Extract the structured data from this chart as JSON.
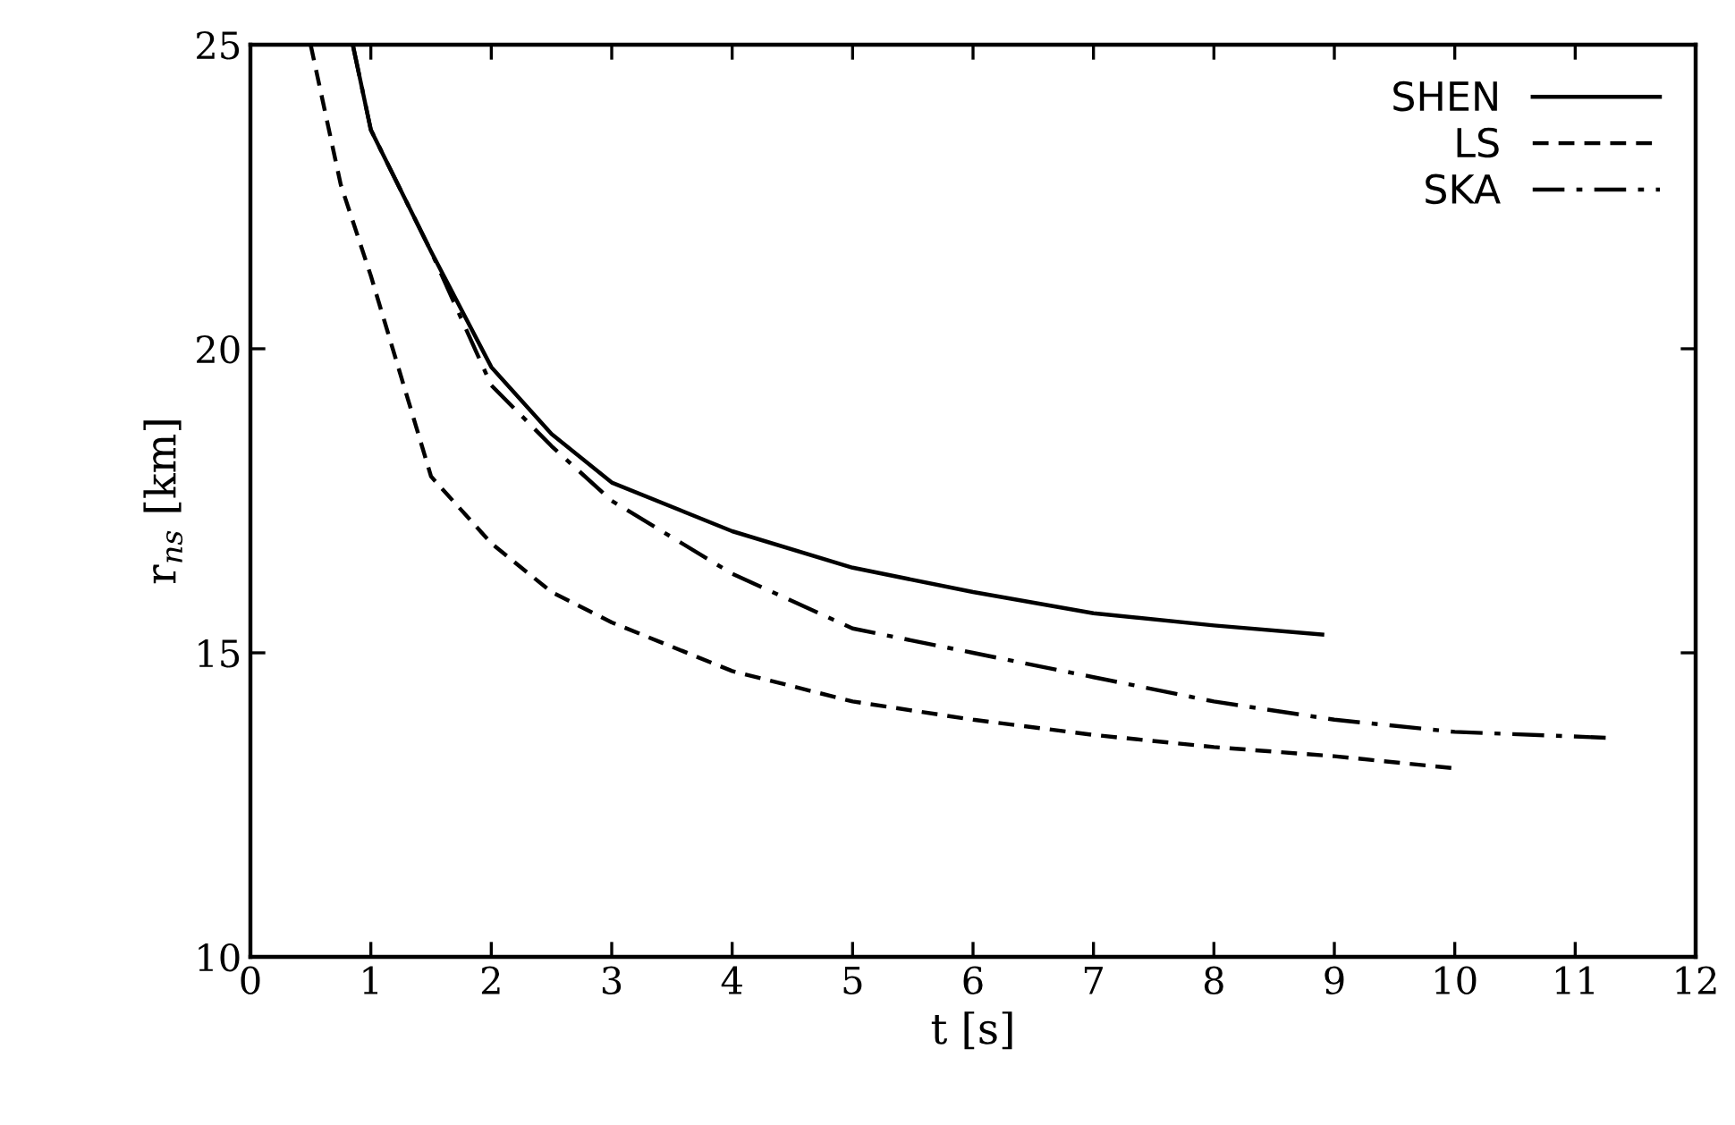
{
  "chart_data": {
    "type": "line",
    "xlabel": "t [s]",
    "ylabel": "r$_{ns}$ [km]",
    "xlim": [
      0,
      12
    ],
    "ylim": [
      10,
      25
    ],
    "xticks": [
      0,
      1,
      2,
      3,
      4,
      5,
      6,
      7,
      8,
      9,
      10,
      11,
      12
    ],
    "yticks": [
      10,
      15,
      20,
      25
    ],
    "grid": false,
    "legend": "top right",
    "marker": "none",
    "series": [
      {
        "name": "SHEN",
        "color": "#000000",
        "line_style": "solid",
        "x": [
          0.85,
          1,
          1.5,
          2,
          2.5,
          3,
          4,
          5,
          6,
          7,
          8,
          8.9
        ],
        "values": [
          25,
          23.6,
          21.6,
          19.7,
          18.6,
          17.8,
          17.0,
          16.4,
          16.0,
          15.65,
          15.45,
          15.3
        ]
      },
      {
        "name": "LS",
        "color": "#000000",
        "line_style": "dashed",
        "x": [
          0.5,
          0.75,
          1,
          1.5,
          2,
          2.5,
          3,
          4,
          5,
          6,
          7,
          8,
          9,
          10
        ],
        "values": [
          25,
          22.7,
          21.2,
          17.9,
          16.8,
          16.0,
          15.5,
          14.7,
          14.2,
          13.9,
          13.65,
          13.45,
          13.3,
          13.1
        ]
      },
      {
        "name": "SKA",
        "color": "#000000",
        "line_style": "dashdot",
        "x": [
          0.85,
          1,
          1.5,
          2,
          2.5,
          3,
          4,
          5,
          6,
          7,
          8,
          9,
          10,
          11.3
        ],
        "values": [
          25,
          23.6,
          21.6,
          19.4,
          18.4,
          17.5,
          16.3,
          15.4,
          15.0,
          14.6,
          14.2,
          13.9,
          13.7,
          13.6
        ]
      }
    ]
  }
}
